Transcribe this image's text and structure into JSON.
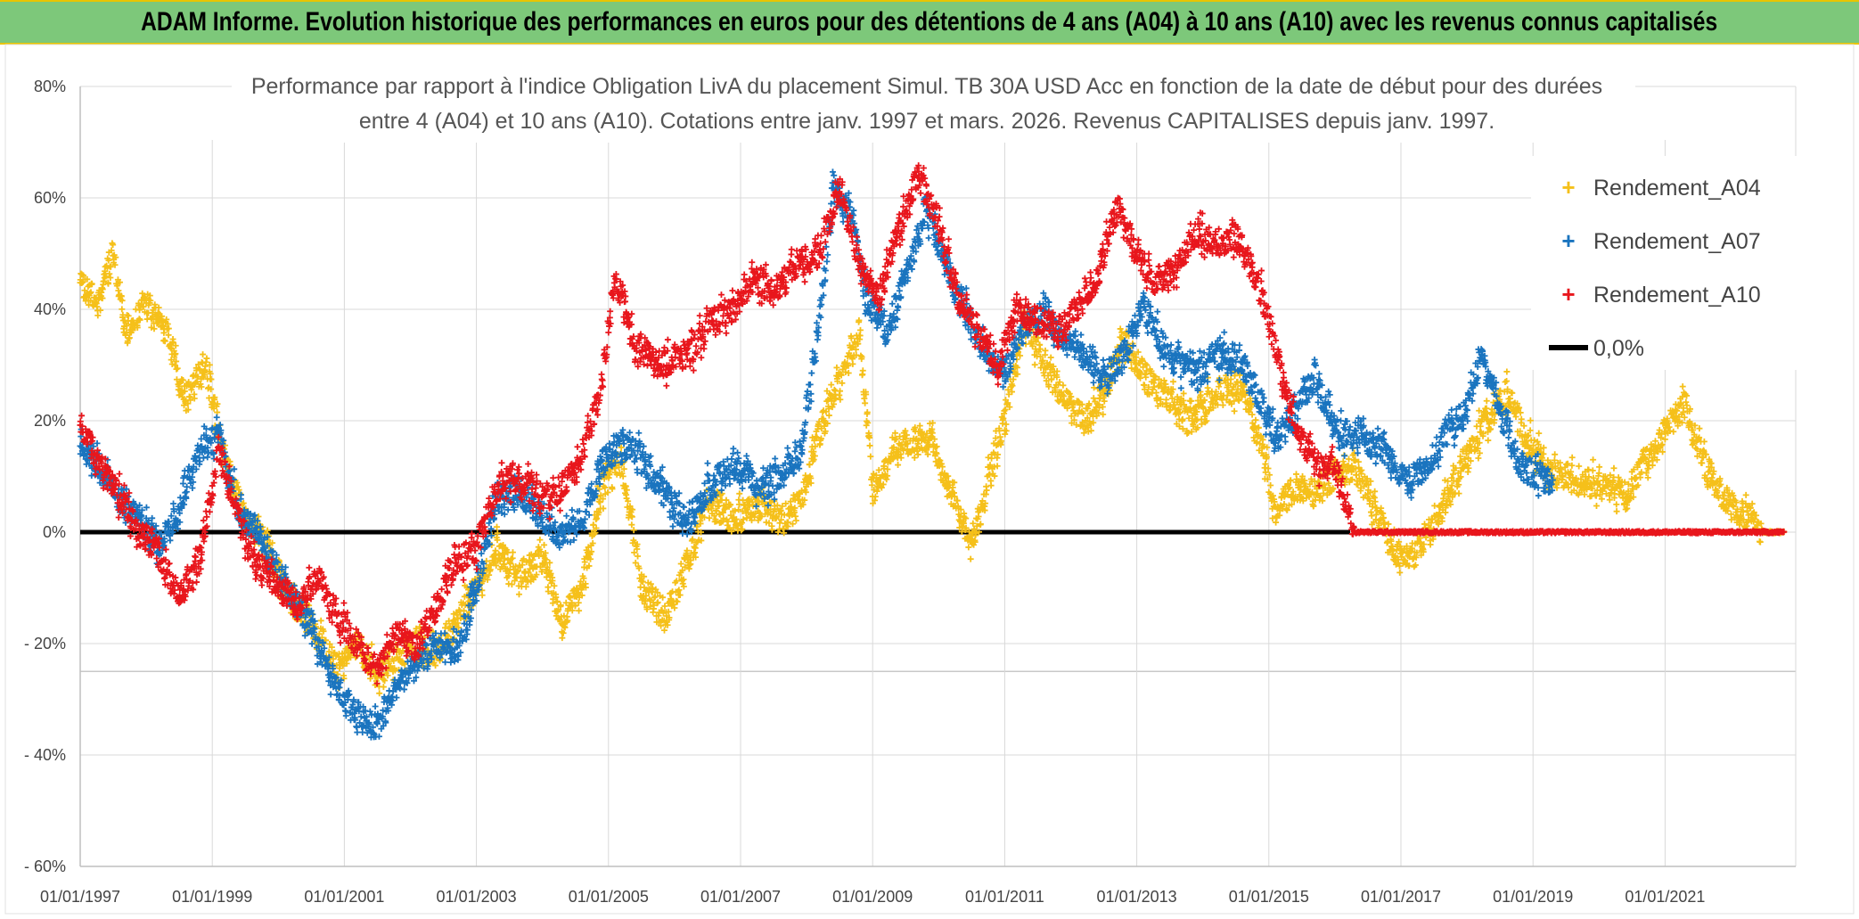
{
  "banner": {
    "title": "ADAM Informe. Evolution historique des performances en euros pour des détentions de 4 ans (A04) à 10 ans (A10) avec les revenus connus capitalisés"
  },
  "colors": {
    "banner_bg": "#7dc87a",
    "a04": "#f5c01a",
    "a07": "#1a74bf",
    "a10": "#e8161c",
    "zero_line": "#000000",
    "grid": "#d9d9d9"
  },
  "chart_data": {
    "type": "scatter",
    "title_lines": [
      "Performance par rapport à l'indice Obligation LivA  du placement Simul. TB 30A USD Acc en fonction de la date de début pour des durées",
      "entre 4 (A04) et 10 ans (A10). Cotations entre janv. 1997 et mars. 2026. Revenus CAPITALISES depuis janv. 1997."
    ],
    "x_range": [
      1997.0,
      2023.0
    ],
    "x_ticks": [
      {
        "value": 1997,
        "label": "01/01/1997"
      },
      {
        "value": 1999,
        "label": "01/01/1999"
      },
      {
        "value": 2001,
        "label": "01/01/2001"
      },
      {
        "value": 2003,
        "label": "01/01/2003"
      },
      {
        "value": 2005,
        "label": "01/01/2005"
      },
      {
        "value": 2007,
        "label": "01/01/2007"
      },
      {
        "value": 2009,
        "label": "01/01/2009"
      },
      {
        "value": 2011,
        "label": "01/01/2011"
      },
      {
        "value": 2013,
        "label": "01/01/2013"
      },
      {
        "value": 2015,
        "label": "01/01/2015"
      },
      {
        "value": 2017,
        "label": "01/01/2017"
      },
      {
        "value": 2019,
        "label": "01/01/2019"
      },
      {
        "value": 2021,
        "label": "01/01/2021"
      }
    ],
    "ylim": [
      -60,
      80
    ],
    "y_ticks": [
      {
        "value": 80,
        "label": "80%"
      },
      {
        "value": 60,
        "label": "60%"
      },
      {
        "value": 40,
        "label": "40%"
      },
      {
        "value": 20,
        "label": "20%"
      },
      {
        "value": 0,
        "label": "0%"
      },
      {
        "value": -20,
        "label": "- 20%"
      },
      {
        "value": -40,
        "label": "- 40%"
      },
      {
        "value": -60,
        "label": "- 60%"
      }
    ],
    "grid": true,
    "legend_position": "top-right",
    "series": [
      {
        "name": "Rendement_A04",
        "color": "#f5c01a",
        "marker": "plus",
        "points": [
          [
            1997.0,
            44
          ],
          [
            1997.3,
            42
          ],
          [
            1997.5,
            50
          ],
          [
            1997.7,
            35
          ],
          [
            1998.0,
            41
          ],
          [
            1998.3,
            36
          ],
          [
            1998.6,
            24
          ],
          [
            1998.9,
            30
          ],
          [
            1999.2,
            12
          ],
          [
            1999.5,
            2
          ],
          [
            1999.8,
            -2
          ],
          [
            2000.1,
            -10
          ],
          [
            2000.5,
            -16
          ],
          [
            2000.9,
            -25
          ],
          [
            2001.2,
            -20
          ],
          [
            2001.5,
            -26
          ],
          [
            2001.8,
            -22
          ],
          [
            2002.1,
            -20
          ],
          [
            2002.4,
            -22
          ],
          [
            2002.7,
            -16
          ],
          [
            2003.0,
            -10
          ],
          [
            2003.3,
            -3
          ],
          [
            2003.6,
            -8
          ],
          [
            2004.0,
            -5
          ],
          [
            2004.3,
            -16
          ],
          [
            2004.6,
            -10
          ],
          [
            2004.9,
            8
          ],
          [
            2005.2,
            13
          ],
          [
            2005.5,
            -10
          ],
          [
            2005.9,
            -15
          ],
          [
            2006.2,
            -5
          ],
          [
            2006.5,
            5
          ],
          [
            2006.9,
            2
          ],
          [
            2007.3,
            5
          ],
          [
            2007.6,
            2
          ],
          [
            2007.9,
            5
          ],
          [
            2008.2,
            18
          ],
          [
            2008.5,
            27
          ],
          [
            2008.8,
            37
          ],
          [
            2009.0,
            7
          ],
          [
            2009.3,
            14
          ],
          [
            2009.6,
            17
          ],
          [
            2009.9,
            16
          ],
          [
            2010.2,
            7
          ],
          [
            2010.5,
            -3
          ],
          [
            2010.8,
            12
          ],
          [
            2011.0,
            20
          ],
          [
            2011.3,
            38
          ],
          [
            2011.6,
            30
          ],
          [
            2011.9,
            24
          ],
          [
            2012.2,
            20
          ],
          [
            2012.5,
            25
          ],
          [
            2012.8,
            35
          ],
          [
            2013.1,
            28
          ],
          [
            2013.5,
            24
          ],
          [
            2013.8,
            20
          ],
          [
            2014.2,
            25
          ],
          [
            2014.6,
            26
          ],
          [
            2014.9,
            15
          ],
          [
            2015.1,
            4
          ],
          [
            2015.4,
            8
          ],
          [
            2015.7,
            7
          ],
          [
            2016.0,
            10
          ],
          [
            2016.3,
            12
          ],
          [
            2016.6,
            4
          ],
          [
            2016.9,
            -3
          ],
          [
            2017.1,
            -6
          ],
          [
            2017.4,
            0
          ],
          [
            2017.7,
            6
          ],
          [
            2018.0,
            14
          ],
          [
            2018.3,
            20
          ],
          [
            2018.6,
            25
          ],
          [
            2018.9,
            17
          ],
          [
            2019.2,
            11
          ],
          [
            2019.5,
            10
          ],
          [
            2019.8,
            9
          ],
          [
            2020.1,
            8
          ],
          [
            2020.4,
            7
          ],
          [
            2020.7,
            12
          ],
          [
            2021.0,
            18
          ],
          [
            2021.3,
            23
          ],
          [
            2021.6,
            12
          ],
          [
            2021.9,
            6
          ],
          [
            2022.2,
            3
          ],
          [
            2022.5,
            0
          ],
          [
            2022.8,
            0
          ]
        ]
      },
      {
        "name": "Rendement_A07",
        "color": "#1a74bf",
        "marker": "plus",
        "points": [
          [
            1997.0,
            15
          ],
          [
            1997.3,
            12
          ],
          [
            1997.6,
            6
          ],
          [
            1997.9,
            2
          ],
          [
            1998.2,
            -2
          ],
          [
            1998.5,
            5
          ],
          [
            1998.8,
            15
          ],
          [
            1999.1,
            17
          ],
          [
            1999.4,
            4
          ],
          [
            1999.7,
            0
          ],
          [
            2000.0,
            -8
          ],
          [
            2000.3,
            -13
          ],
          [
            2000.6,
            -20
          ],
          [
            2000.9,
            -28
          ],
          [
            2001.2,
            -33
          ],
          [
            2001.5,
            -35
          ],
          [
            2001.8,
            -27
          ],
          [
            2002.1,
            -24
          ],
          [
            2002.4,
            -20
          ],
          [
            2002.7,
            -22
          ],
          [
            2003.0,
            -10
          ],
          [
            2003.3,
            5
          ],
          [
            2003.6,
            8
          ],
          [
            2004.0,
            3
          ],
          [
            2004.3,
            -1
          ],
          [
            2004.6,
            2
          ],
          [
            2004.9,
            12
          ],
          [
            2005.2,
            16
          ],
          [
            2005.5,
            13
          ],
          [
            2005.9,
            6
          ],
          [
            2006.2,
            2
          ],
          [
            2006.5,
            8
          ],
          [
            2006.9,
            12
          ],
          [
            2007.3,
            8
          ],
          [
            2007.6,
            10
          ],
          [
            2007.9,
            14
          ],
          [
            2008.2,
            38
          ],
          [
            2008.4,
            62
          ],
          [
            2008.7,
            56
          ],
          [
            2008.9,
            42
          ],
          [
            2009.2,
            36
          ],
          [
            2009.5,
            45
          ],
          [
            2009.8,
            58
          ],
          [
            2010.1,
            48
          ],
          [
            2010.4,
            40
          ],
          [
            2010.7,
            32
          ],
          [
            2011.0,
            29
          ],
          [
            2011.3,
            37
          ],
          [
            2011.6,
            40
          ],
          [
            2011.9,
            34
          ],
          [
            2012.2,
            32
          ],
          [
            2012.5,
            28
          ],
          [
            2012.8,
            32
          ],
          [
            2013.1,
            40
          ],
          [
            2013.5,
            32
          ],
          [
            2013.9,
            28
          ],
          [
            2014.2,
            32
          ],
          [
            2014.6,
            30
          ],
          [
            2014.9,
            23
          ],
          [
            2015.1,
            17
          ],
          [
            2015.4,
            22
          ],
          [
            2015.7,
            28
          ],
          [
            2016.0,
            18
          ],
          [
            2016.4,
            17
          ],
          [
            2016.7,
            15
          ],
          [
            2017.1,
            9
          ],
          [
            2017.4,
            12
          ],
          [
            2017.7,
            18
          ],
          [
            2018.0,
            22
          ],
          [
            2018.2,
            32
          ],
          [
            2018.5,
            22
          ],
          [
            2018.8,
            12
          ],
          [
            2019.1,
            10
          ],
          [
            2019.3,
            9
          ]
        ]
      },
      {
        "name": "Rendement_A10",
        "color": "#e8161c",
        "marker": "plus",
        "points": [
          [
            1997.0,
            20
          ],
          [
            1997.3,
            12
          ],
          [
            1997.6,
            6
          ],
          [
            1997.9,
            0
          ],
          [
            1998.2,
            -4
          ],
          [
            1998.5,
            -12
          ],
          [
            1998.8,
            -5
          ],
          [
            1999.1,
            15
          ],
          [
            1999.4,
            2
          ],
          [
            1999.7,
            -6
          ],
          [
            2000.0,
            -10
          ],
          [
            2000.3,
            -13
          ],
          [
            2000.6,
            -8
          ],
          [
            2000.9,
            -15
          ],
          [
            2001.2,
            -20
          ],
          [
            2001.5,
            -25
          ],
          [
            2001.8,
            -18
          ],
          [
            2002.1,
            -21
          ],
          [
            2002.4,
            -13
          ],
          [
            2002.7,
            -5
          ],
          [
            2003.0,
            -3
          ],
          [
            2003.3,
            8
          ],
          [
            2003.6,
            10
          ],
          [
            2004.0,
            6
          ],
          [
            2004.3,
            8
          ],
          [
            2004.6,
            14
          ],
          [
            2004.9,
            27
          ],
          [
            2005.1,
            46
          ],
          [
            2005.4,
            33
          ],
          [
            2005.8,
            30
          ],
          [
            2006.2,
            32
          ],
          [
            2006.5,
            37
          ],
          [
            2006.9,
            40
          ],
          [
            2007.2,
            46
          ],
          [
            2007.5,
            43
          ],
          [
            2007.8,
            48
          ],
          [
            2008.2,
            50
          ],
          [
            2008.5,
            62
          ],
          [
            2008.8,
            48
          ],
          [
            2009.1,
            42
          ],
          [
            2009.4,
            55
          ],
          [
            2009.7,
            64
          ],
          [
            2010.0,
            55
          ],
          [
            2010.3,
            42
          ],
          [
            2010.6,
            36
          ],
          [
            2010.9,
            30
          ],
          [
            2011.2,
            40
          ],
          [
            2011.5,
            38
          ],
          [
            2011.8,
            36
          ],
          [
            2012.1,
            40
          ],
          [
            2012.4,
            46
          ],
          [
            2012.7,
            58
          ],
          [
            2013.0,
            50
          ],
          [
            2013.3,
            44
          ],
          [
            2013.6,
            48
          ],
          [
            2013.9,
            54
          ],
          [
            2014.2,
            52
          ],
          [
            2014.5,
            53
          ],
          [
            2014.8,
            46
          ],
          [
            2015.0,
            38
          ],
          [
            2015.2,
            28
          ],
          [
            2015.5,
            16
          ],
          [
            2015.8,
            12
          ],
          [
            2016.0,
            12
          ],
          [
            2016.3,
            0
          ],
          [
            2017.0,
            0
          ],
          [
            2018.0,
            0
          ],
          [
            2019.0,
            0
          ],
          [
            2020.0,
            0
          ],
          [
            2021.0,
            0
          ],
          [
            2022.0,
            0
          ],
          [
            2022.8,
            0
          ]
        ]
      }
    ],
    "zero_line_label": "0,0%"
  }
}
